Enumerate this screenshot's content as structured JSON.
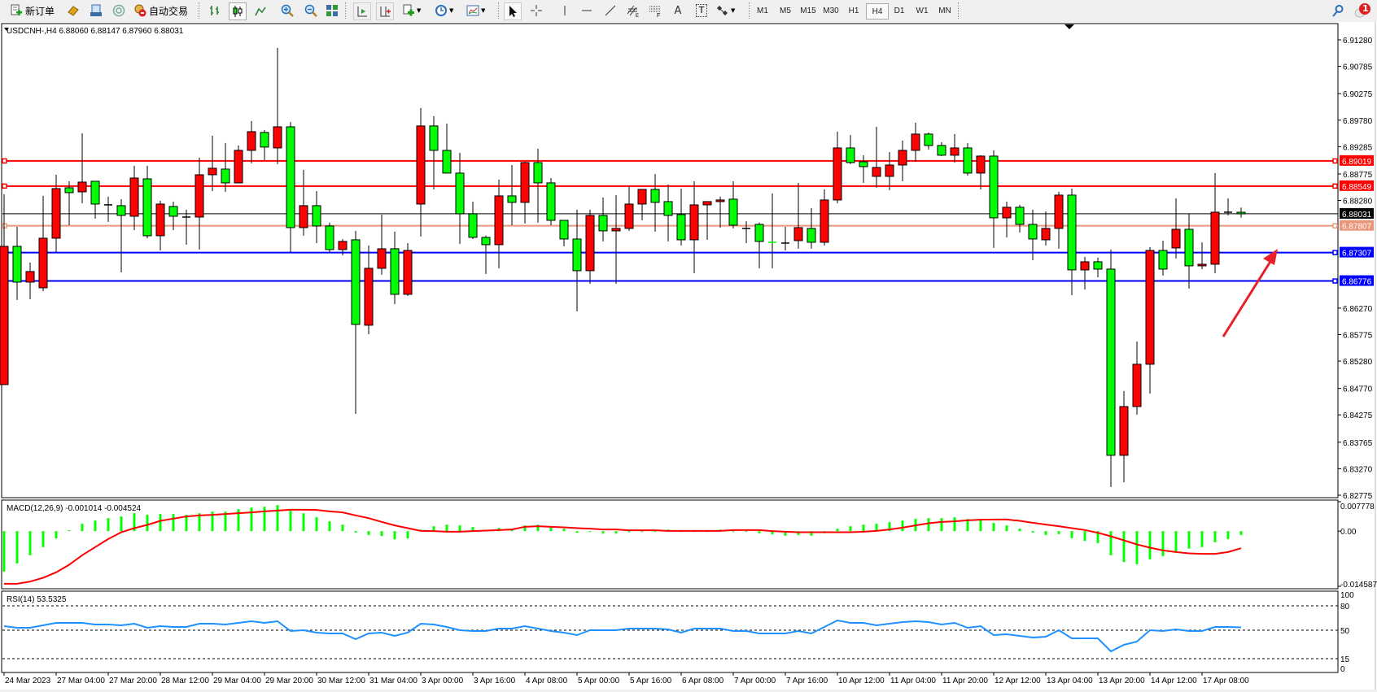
{
  "toolbar": {
    "new_order_label": "新订单",
    "auto_trading_label": "自动交易",
    "icons": [
      "new-order-icon",
      "market-watch-icon",
      "data-window-icon",
      "navigator-icon",
      "auto-trading-icon",
      "bar-chart-icon",
      "candlestick-icon",
      "line-chart-icon",
      "zoom-in-icon",
      "zoom-out-icon",
      "tile-windows-icon",
      "chart-shift-icon",
      "autoscroll-icon",
      "add-indicator-icon",
      "periods-icon",
      "templates-icon",
      "cursor-icon",
      "crosshair-icon",
      "vertical-line-icon",
      "horizontal-line-icon",
      "trendline-icon",
      "equidistant-channel-icon",
      "fibonacci-icon",
      "text-icon",
      "text-label-icon",
      "arrows-icon",
      "search-icon",
      "notification-icon"
    ],
    "equidistant_letter": "E",
    "fibo_letter": "F",
    "text_tool_letter": "A",
    "label_tool_letter": "T",
    "timeframes": [
      "M1",
      "M5",
      "M15",
      "M30",
      "H1",
      "H4",
      "D1",
      "W1",
      "MN"
    ],
    "active_timeframe": "H4",
    "notification_count": "1"
  },
  "chart": {
    "symbol_header": "USDCNH-,H4  6.88060 6.88147 6.87960 6.88031",
    "colors": {
      "bull": "#ff0000",
      "bear": "#00ff00",
      "outline": "#000000",
      "macd_hist": "#00ff00",
      "macd_signal": "#ff0000",
      "rsi": "#1e90ff",
      "arrow": "#e8202a"
    },
    "price_range": [
      6.82775,
      6.9128
    ],
    "price_ticks": [
      "6.91280",
      "6.90785",
      "6.90275",
      "6.89780",
      "6.89285",
      "6.88775",
      "6.88280",
      "6.86270",
      "6.85775",
      "6.85280",
      "6.84770",
      "6.84275",
      "6.83765",
      "6.83270",
      "6.82775"
    ],
    "current_price": "6.88031",
    "levels": [
      {
        "price": "6.89019",
        "color": "#ff0000"
      },
      {
        "price": "6.88549",
        "color": "#ff0000"
      },
      {
        "price": "6.87807",
        "color": "#e9967a"
      },
      {
        "price": "6.87307",
        "color": "#0000ff"
      },
      {
        "price": "6.86776",
        "color": "#0000ff"
      }
    ],
    "candles_ohlc": [
      [
        6.84841,
        6.88396,
        6.84841,
        6.87423
      ],
      [
        6.87423,
        6.87788,
        6.86421,
        6.86755
      ],
      [
        6.86755,
        6.8712,
        6.86436,
        6.86953
      ],
      [
        6.86649,
        6.88365,
        6.86588,
        6.87575
      ],
      [
        6.87575,
        6.8876,
        6.87317,
        6.88502
      ],
      [
        6.88517,
        6.88639,
        6.87818,
        6.88426
      ],
      [
        6.88441,
        6.89535,
        6.88228,
        6.88623
      ],
      [
        6.88639,
        6.88639,
        6.8794,
        6.88213
      ],
      [
        6.88198,
        6.8835,
        6.87879,
        6.88198
      ],
      [
        6.88183,
        6.88304,
        6.86937,
        6.88001
      ],
      [
        6.87985,
        6.88927,
        6.87727,
        6.88699
      ],
      [
        6.88684,
        6.88927,
        6.87575,
        6.87621
      ],
      [
        6.87621,
        6.88274,
        6.87347,
        6.88213
      ],
      [
        6.88168,
        6.88259,
        6.87727,
        6.87985
      ],
      [
        6.8797,
        6.88107,
        6.87454,
        6.8797
      ],
      [
        6.8797,
        6.89079,
        6.87363,
        6.8876
      ],
      [
        6.8876,
        6.89489,
        6.88456,
        6.88882
      ],
      [
        6.88866,
        6.89353,
        6.88441,
        6.88608
      ],
      [
        6.88608,
        6.89307,
        6.88608,
        6.89216
      ],
      [
        6.89216,
        6.89763,
        6.88973,
        6.89565
      ],
      [
        6.8955,
        6.89596,
        6.89034,
        6.89277
      ],
      [
        6.89261,
        6.9113,
        6.88958,
        6.89656
      ],
      [
        6.89656,
        6.89747,
        6.87317,
        6.87773
      ],
      [
        6.87773,
        6.88851,
        6.87621,
        6.88183
      ],
      [
        6.88183,
        6.88456,
        6.87484,
        6.87803
      ],
      [
        6.87803,
        6.87864,
        6.87317,
        6.87363
      ],
      [
        6.87363,
        6.8756,
        6.87256,
        6.87515
      ],
      [
        6.87545,
        6.87712,
        6.84294,
        6.85965
      ],
      [
        6.8595,
        6.87439,
        6.85783,
        6.87013
      ],
      [
        6.87013,
        6.88016,
        6.86892,
        6.87378
      ],
      [
        6.87378,
        6.87697,
        6.86345,
        6.86527
      ],
      [
        6.86527,
        6.87484,
        6.86497,
        6.87347
      ],
      [
        6.88213,
        6.90006,
        6.87606,
        6.89672
      ],
      [
        6.89672,
        6.89854,
        6.88487,
        6.89216
      ],
      [
        6.89216,
        6.89717,
        6.88791,
        6.88791
      ],
      [
        6.88791,
        6.8917,
        6.87469,
        6.88031
      ],
      [
        6.88031,
        6.88259,
        6.8756,
        6.87591
      ],
      [
        6.87591,
        6.87621,
        6.86907,
        6.87454
      ],
      [
        6.87454,
        6.88669,
        6.87013,
        6.88365
      ],
      [
        6.88365,
        6.88942,
        6.87818,
        6.88244
      ],
      [
        6.88244,
        6.89003,
        6.87849,
        6.88988
      ],
      [
        6.88988,
        6.89246,
        6.87864,
        6.88608
      ],
      [
        6.88608,
        6.88699,
        6.87818,
        6.87909
      ],
      [
        6.87909,
        6.87909,
        6.87423,
        6.8756
      ],
      [
        6.8756,
        6.88107,
        6.86208,
        6.86968
      ],
      [
        6.86968,
        6.88107,
        6.86725,
        6.88001
      ],
      [
        6.88001,
        6.88335,
        6.87515,
        6.87712
      ],
      [
        6.87712,
        6.8838,
        6.86725,
        6.87758
      ],
      [
        6.87758,
        6.88547,
        6.87712,
        6.88213
      ],
      [
        6.88213,
        6.88487,
        6.87909,
        6.88487
      ],
      [
        6.88487,
        6.88775,
        6.87697,
        6.88244
      ],
      [
        6.88259,
        6.88578,
        6.87515,
        6.88001
      ],
      [
        6.88016,
        6.88502,
        6.87439,
        6.87545
      ],
      [
        6.87545,
        6.88639,
        6.86922,
        6.88198
      ],
      [
        6.88198,
        6.88259,
        6.87545,
        6.88259
      ],
      [
        6.88259,
        6.8835,
        6.87773,
        6.88289
      ],
      [
        6.88304,
        6.88639,
        6.87758,
        6.87818
      ],
      [
        6.87758,
        6.87894,
        6.87484,
        6.87758
      ],
      [
        6.87834,
        6.87864,
        6.87013,
        6.87515
      ],
      [
        6.87499,
        6.88411,
        6.87013,
        6.87499
      ],
      [
        6.87484,
        6.87788,
        6.87347,
        6.87484
      ],
      [
        6.8753,
        6.88608,
        6.87378,
        6.87773
      ],
      [
        6.87758,
        6.88137,
        6.87378,
        6.87499
      ],
      [
        6.87499,
        6.88487,
        6.87439,
        6.88289
      ],
      [
        6.88289,
        6.89565,
        6.88228,
        6.89261
      ],
      [
        6.89261,
        6.89504,
        6.88958,
        6.88988
      ],
      [
        6.89003,
        6.89125,
        6.88608,
        6.88912
      ],
      [
        6.8873,
        6.89656,
        6.88517,
        6.88897
      ],
      [
        6.8873,
        6.89185,
        6.88472,
        6.88942
      ],
      [
        6.88942,
        6.89398,
        6.88639,
        6.89216
      ],
      [
        6.89216,
        6.89732,
        6.89003,
        6.8952
      ],
      [
        6.8952,
        6.8955,
        6.89231,
        6.89307
      ],
      [
        6.89307,
        6.89368,
        6.89109,
        6.89125
      ],
      [
        6.89125,
        6.8952,
        6.88988,
        6.89261
      ],
      [
        6.89261,
        6.89353,
        6.88745,
        6.88791
      ],
      [
        6.88791,
        6.89125,
        6.88487,
        6.89109
      ],
      [
        6.89109,
        6.89216,
        6.87393,
        6.87955
      ],
      [
        6.87955,
        6.88259,
        6.87591,
        6.88153
      ],
      [
        6.88153,
        6.88198,
        6.87682,
        6.87834
      ],
      [
        6.87834,
        6.88107,
        6.87165,
        6.8756
      ],
      [
        6.87545,
        6.88077,
        6.87439,
        6.87758
      ],
      [
        6.87758,
        6.88441,
        6.87378,
        6.8838
      ],
      [
        6.8838,
        6.88502,
        6.86512,
        6.86983
      ],
      [
        6.86983,
        6.87226,
        6.86618,
        6.87135
      ],
      [
        6.87135,
        6.87211,
        6.86846,
        6.86998
      ],
      [
        6.86998,
        6.87363,
        6.82927,
        6.8352
      ],
      [
        6.8352,
        6.8472,
        6.83018,
        6.84431
      ],
      [
        6.84431,
        6.85646,
        6.84279,
        6.85221
      ],
      [
        6.85221,
        6.87408,
        6.84674,
        6.87347
      ],
      [
        6.87347,
        6.8753,
        6.86877,
        6.86998
      ],
      [
        6.87393,
        6.8832,
        6.87196,
        6.87742
      ],
      [
        6.87742,
        6.88031,
        6.86634,
        6.87059
      ],
      [
        6.87059,
        6.87499,
        6.86998,
        6.87089
      ],
      [
        6.87089,
        6.88791,
        6.86922,
        6.88061
      ],
      [
        6.88061,
        6.8832,
        6.88001,
        6.88061
      ],
      [
        6.8806,
        6.88147,
        6.8796,
        6.88031
      ]
    ],
    "time_labels": [
      "24 Mar 2023",
      "27 Mar 04:00",
      "27 Mar 20:00",
      "28 Mar 12:00",
      "29 Mar 04:00",
      "29 Mar 20:00",
      "30 Mar 12:00",
      "31 Mar 04:00",
      "3 Apr 00:00",
      "3 Apr 16:00",
      "4 Apr 08:00",
      "5 Apr 00:00",
      "5 Apr 16:00",
      "6 Apr 08:00",
      "7 Apr 00:00",
      "7 Apr 16:00",
      "10 Apr 12:00",
      "11 Apr 04:00",
      "11 Apr 20:00",
      "12 Apr 12:00",
      "13 Apr 04:00",
      "13 Apr 20:00",
      "14 Apr 12:00",
      "17 Apr 08:00"
    ]
  },
  "macd": {
    "header": "MACD(12,26,9) -0.001014 -0.004524",
    "scale_labels": [
      "0.007778",
      "0.00",
      "-0.014587"
    ],
    "range": [
      -0.014587,
      0.007778
    ],
    "histogram": [
      -0.01068,
      -0.00853,
      -0.00638,
      -0.00423,
      -0.00194,
      0.00022,
      0.00194,
      0.0028,
      0.00344,
      0.00387,
      0.00473,
      0.0043,
      0.00452,
      0.00452,
      0.0043,
      0.00473,
      0.00516,
      0.00516,
      0.00581,
      0.00624,
      0.00645,
      0.00688,
      0.00538,
      0.00473,
      0.00366,
      0.00258,
      0.00172,
      -0.00036,
      -0.001,
      -0.00129,
      -0.00215,
      -0.00194,
      0.00043,
      0.00129,
      0.00172,
      0.00151,
      0.00108,
      0.00022,
      0.00086,
      0.00065,
      0.00151,
      0.00172,
      0.00108,
      0.00065,
      -0.00043,
      -0.00022,
      -0.00065,
      -0.00065,
      -0.00029,
      0,
      0,
      0.00043,
      0,
      0,
      0,
      0.00043,
      0,
      -0.00014,
      -0.00057,
      -0.00086,
      -0.00122,
      -0.001,
      -0.00122,
      -0.00057,
      0.00065,
      0.00129,
      0.00172,
      0.00194,
      0.00237,
      0.0028,
      0.00323,
      0.00344,
      0.00344,
      0.00366,
      0.00323,
      0.00301,
      0.00215,
      0.00151,
      0.00065,
      -0.00036,
      -0.001,
      -0.00079,
      -0.00186,
      -0.00258,
      -0.00315,
      -0.00638,
      -0.00817,
      -0.00875,
      -0.00746,
      -0.0066,
      -0.00531,
      -0.00459,
      -0.00423,
      -0.00294,
      -0.00208,
      -0.00101
    ],
    "signal": [
      -0.01391,
      -0.01391,
      -0.01334,
      -0.01233,
      -0.0109,
      -0.00889,
      -0.00638,
      -0.00423,
      -0.00208,
      -0.00029,
      0.00079,
      0.00165,
      0.00272,
      0.0033,
      0.00387,
      0.00416,
      0.0043,
      0.00452,
      0.00473,
      0.00495,
      0.00523,
      0.00545,
      0.00566,
      0.00566,
      0.00559,
      0.00523,
      0.00495,
      0.00416,
      0.00344,
      0.00244,
      0.00151,
      0.00079,
      7e-05,
      0,
      -0.00014,
      -0.00014,
      0,
      0.00014,
      0.00029,
      0.00043,
      0.00115,
      0.00129,
      0.00115,
      0.001,
      0.00079,
      0.00065,
      0.00043,
      0.00043,
      0.00022,
      0.00022,
      0.00022,
      7e-05,
      7e-05,
      7e-05,
      7e-05,
      7e-05,
      0.00029,
      0.00029,
      0.00029,
      0,
      -0.00014,
      -0.00029,
      -0.00029,
      -0.00029,
      -0.00029,
      -0.00029,
      -0.00014,
      7e-05,
      0.00043,
      0.00093,
      0.00151,
      0.00208,
      0.00244,
      0.00258,
      0.00287,
      0.00301,
      0.00308,
      0.00308,
      0.00272,
      0.00222,
      0.00172,
      0.00129,
      0.00079,
      0.00029,
      -0.00043,
      -0.00136,
      -0.00244,
      -0.00351,
      -0.00437,
      -0.00509,
      -0.00552,
      -0.00588,
      -0.00602,
      -0.00602,
      -0.00552,
      -0.00452
    ]
  },
  "rsi": {
    "header": "RSI(14) 53.5325",
    "scale_labels": [
      "100",
      "80",
      "50",
      "15",
      "0"
    ],
    "levels": [
      80,
      50,
      15
    ],
    "values": [
      55,
      53,
      53,
      56,
      59,
      59,
      59,
      57,
      57,
      56,
      58,
      53,
      55,
      54,
      54,
      58,
      58,
      57,
      59,
      61,
      59,
      61,
      49,
      50,
      47,
      46,
      46,
      39,
      46,
      47,
      43,
      47,
      58,
      57,
      54,
      50,
      49,
      49,
      52,
      52,
      55,
      52,
      49,
      47,
      44,
      50,
      50,
      50,
      52,
      52,
      52,
      51,
      47,
      52,
      52,
      52,
      49,
      49,
      46,
      46,
      46,
      49,
      46,
      54,
      62,
      59,
      59,
      56,
      58,
      60,
      61,
      60,
      57,
      59,
      53,
      55,
      44,
      45,
      43,
      41,
      42,
      50,
      40,
      40,
      40,
      24,
      32,
      36,
      50,
      49,
      51,
      49,
      49,
      54,
      54,
      53.53
    ]
  }
}
